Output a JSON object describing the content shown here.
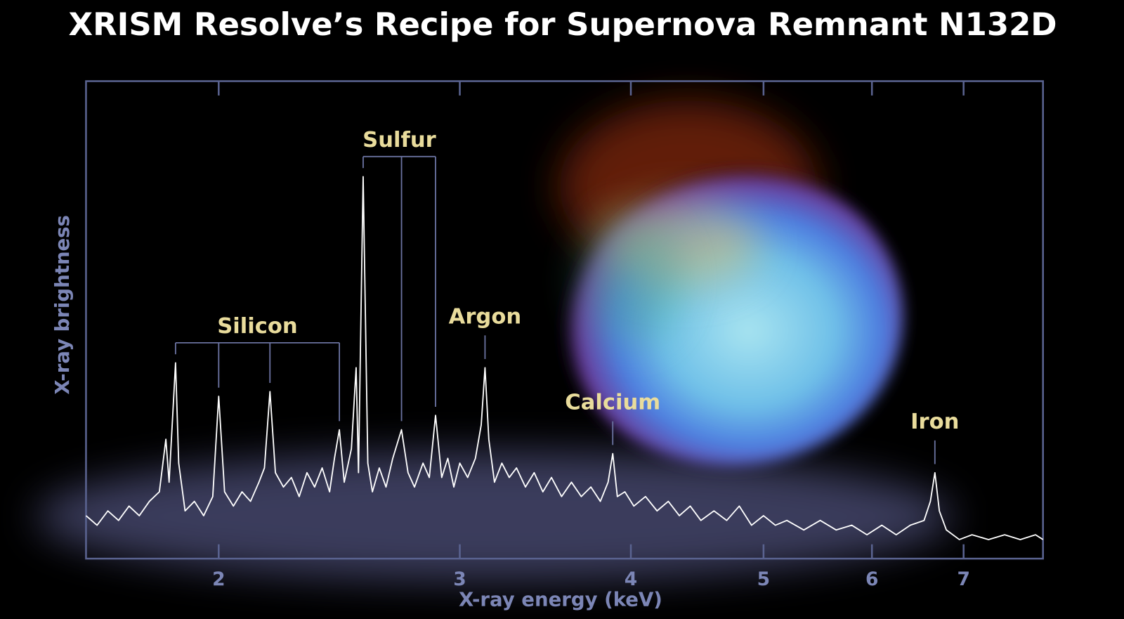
{
  "chart_data": {
    "type": "line",
    "title": "XRISM Resolve’s Recipe for Supernova Remnant N132D",
    "x_label": "X-ray energy (keV)",
    "y_label": "X-ray brightness",
    "log_x": true,
    "color": "#ffffff",
    "xlim": [
      1.6,
      8.0
    ],
    "xticks": [
      2,
      3,
      4,
      5,
      6,
      7
    ],
    "ylim": [
      0,
      100
    ],
    "x": [
      1.6,
      1.63,
      1.66,
      1.69,
      1.72,
      1.75,
      1.78,
      1.81,
      1.83,
      1.84,
      1.86,
      1.87,
      1.89,
      1.92,
      1.95,
      1.98,
      2.0,
      2.02,
      2.05,
      2.08,
      2.11,
      2.14,
      2.16,
      2.18,
      2.2,
      2.23,
      2.26,
      2.29,
      2.32,
      2.35,
      2.38,
      2.41,
      2.43,
      2.45,
      2.47,
      2.5,
      2.52,
      2.53,
      2.55,
      2.57,
      2.59,
      2.62,
      2.65,
      2.68,
      2.72,
      2.75,
      2.78,
      2.82,
      2.85,
      2.88,
      2.91,
      2.94,
      2.97,
      3.0,
      3.04,
      3.08,
      3.11,
      3.13,
      3.15,
      3.18,
      3.22,
      3.26,
      3.3,
      3.35,
      3.4,
      3.45,
      3.5,
      3.56,
      3.62,
      3.68,
      3.74,
      3.8,
      3.85,
      3.88,
      3.91,
      3.96,
      4.02,
      4.1,
      4.18,
      4.26,
      4.34,
      4.42,
      4.5,
      4.6,
      4.7,
      4.8,
      4.9,
      5.0,
      5.1,
      5.2,
      5.35,
      5.5,
      5.65,
      5.8,
      5.95,
      6.1,
      6.25,
      6.4,
      6.55,
      6.62,
      6.67,
      6.72,
      6.8,
      6.95,
      7.1,
      7.3,
      7.5,
      7.7,
      7.9,
      8.0
    ],
    "values": [
      9,
      7,
      10,
      8,
      11,
      9,
      12,
      14,
      25,
      16,
      41,
      20,
      10,
      12,
      9,
      13,
      34,
      14,
      11,
      14,
      12,
      16,
      19,
      35,
      18,
      15,
      17,
      13,
      18,
      15,
      19,
      14,
      21,
      27,
      16,
      23,
      40,
      18,
      80,
      20,
      14,
      19,
      15,
      21,
      27,
      18,
      15,
      20,
      17,
      30,
      17,
      21,
      15,
      20,
      17,
      21,
      28,
      40,
      25,
      16,
      20,
      17,
      19,
      15,
      18,
      14,
      17,
      13,
      16,
      13,
      15,
      12,
      16,
      22,
      13,
      14,
      11,
      13,
      10,
      12,
      9,
      11,
      8,
      10,
      8,
      11,
      7,
      9,
      7,
      8,
      6,
      8,
      6,
      7,
      5,
      7,
      5,
      7,
      8,
      12,
      18,
      10,
      6,
      4,
      5,
      4,
      5,
      4,
      5,
      4
    ],
    "annotations": [
      {
        "text": "Silicon",
        "lines": [
          1.86,
          2.0,
          2.18,
          2.45
        ]
      },
      {
        "text": "Sulfur",
        "lines": [
          2.55,
          2.72,
          2.88
        ]
      },
      {
        "text": "Argon",
        "lines": [
          3.13
        ]
      },
      {
        "text": "Calcium",
        "lines": [
          3.88
        ]
      },
      {
        "text": "Iron",
        "lines": [
          6.67
        ]
      }
    ]
  }
}
